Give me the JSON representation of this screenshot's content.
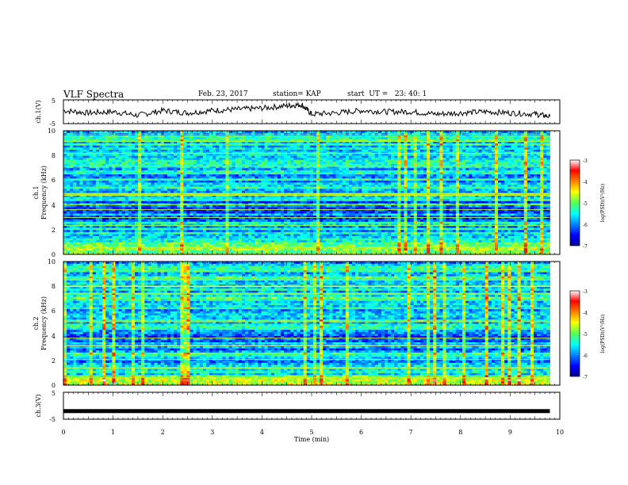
{
  "header": {
    "title": "VLF Spectra",
    "date": "Feb. 23, 2017",
    "station": "station= KAP",
    "start": "start  UT =   23: 40: 1"
  },
  "chart_data": [
    {
      "type": "line",
      "ylabel": "ch.1(V)",
      "ylim": [
        -5,
        5
      ],
      "yticks": [
        "5",
        "-5"
      ],
      "xlim": [
        0,
        10
      ],
      "x": [
        0,
        0.5,
        1.0,
        1.5,
        2.0,
        2.5,
        3.0,
        3.5,
        4.0,
        4.5,
        4.8,
        5.0,
        5.5,
        6.0,
        6.5,
        7.0,
        7.5,
        8.0,
        8.5,
        9.0,
        9.5,
        9.8
      ],
      "values": [
        0.5,
        -0.5,
        0,
        -1.5,
        0.5,
        -0.5,
        0.5,
        1,
        1.5,
        2.5,
        3,
        -1,
        -0.5,
        0.5,
        0,
        0,
        -1,
        -0.5,
        0,
        -0.5,
        -1,
        -2
      ]
    },
    {
      "type": "heatmap",
      "ylabel": "ch.1",
      "ylabel2": "Frequency (kHz)",
      "ylim": [
        0,
        10
      ],
      "yticks": [
        "0",
        "2",
        "4",
        "6",
        "8",
        "10"
      ],
      "xlim": [
        0,
        9.8
      ],
      "colorbar": {
        "label": "log(PSD)(V²/Hz)",
        "ticks": [
          "-3",
          "-4",
          "-5",
          "-6",
          "-7"
        ],
        "range": [
          -7,
          -3
        ]
      }
    },
    {
      "type": "heatmap",
      "ylabel": "ch.2",
      "ylabel2": "Frequency (kHz)",
      "ylim": [
        0,
        10
      ],
      "yticks": [
        "0",
        "2",
        "4",
        "6",
        "8",
        "10"
      ],
      "xlim": [
        0,
        9.8
      ],
      "colorbar": {
        "label": "log(PSD)(V²/Hz)",
        "ticks": [
          "-3",
          "-4",
          "-5",
          "-6",
          "-7"
        ],
        "range": [
          -7,
          -3
        ]
      }
    },
    {
      "type": "line",
      "ylabel": "ch.3(V)",
      "ylim": [
        -5,
        5
      ],
      "yticks": [
        "5",
        "-5"
      ],
      "xlim": [
        0,
        10
      ],
      "x": [
        0,
        9.8
      ],
      "values": [
        -2,
        -2
      ]
    }
  ],
  "xaxis": {
    "label": "Time  (min)",
    "ticks": [
      "0",
      "1",
      "2",
      "3",
      "4",
      "5",
      "6",
      "7",
      "8",
      "9",
      "10"
    ]
  }
}
